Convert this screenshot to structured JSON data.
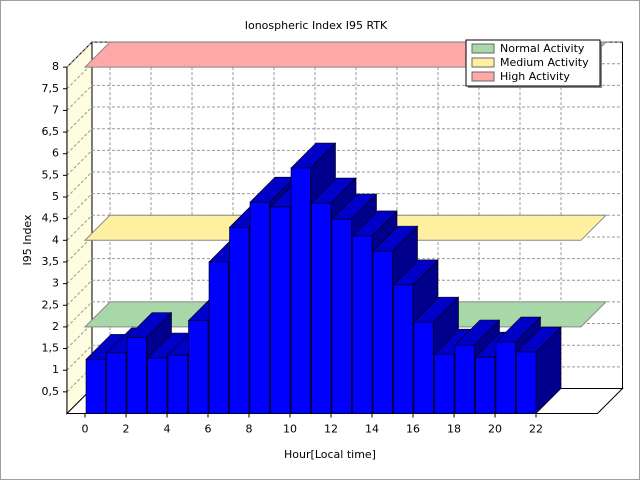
{
  "chart_data": {
    "type": "bar3d",
    "title": "Ionospheric Index I95 RTK",
    "xlabel": "Hour[Local time]",
    "ylabel": "I95 Index",
    "x": [
      0,
      1,
      2,
      3,
      4,
      5,
      6,
      7,
      8,
      9,
      10,
      11,
      12,
      13,
      14,
      15,
      16,
      17,
      18,
      19,
      20,
      21
    ],
    "values": [
      1.25,
      1.4,
      1.75,
      1.28,
      1.35,
      2.15,
      3.5,
      4.3,
      4.88,
      4.77,
      5.67,
      4.86,
      4.49,
      4.1,
      3.75,
      2.97,
      2.11,
      1.37,
      1.58,
      1.3,
      1.65,
      1.42
    ],
    "color": "#0000ff",
    "xlim": [
      -0.88,
      25
    ],
    "xticks": [
      0,
      2,
      4,
      6,
      8,
      10,
      12,
      14,
      16,
      18,
      20,
      22
    ],
    "ylim": [
      0,
      8
    ],
    "yticks": [
      {
        "value": 0.5,
        "label": "0,5"
      },
      1,
      {
        "value": 1.5,
        "label": "1,5"
      },
      2,
      {
        "value": 2.5,
        "label": "2,5"
      },
      3,
      {
        "value": 3.5,
        "label": "3,5"
      },
      4,
      {
        "value": 4.5,
        "label": "4,5"
      },
      5,
      {
        "value": 5.5,
        "label": "5,5"
      },
      6,
      {
        "value": 6.5,
        "label": "6,5"
      },
      7,
      {
        "value": 7.5,
        "label": "7,5"
      },
      8
    ],
    "grid": true,
    "legend": "top-right",
    "bands": [
      {
        "name": "Normal Activity",
        "value": 2,
        "color": "#a8d8a8"
      },
      {
        "name": "Medium Activity",
        "value": 4,
        "color": "#fff0a0"
      },
      {
        "name": "High Activity",
        "value": 8,
        "color": "#ffa8a8"
      }
    ]
  }
}
